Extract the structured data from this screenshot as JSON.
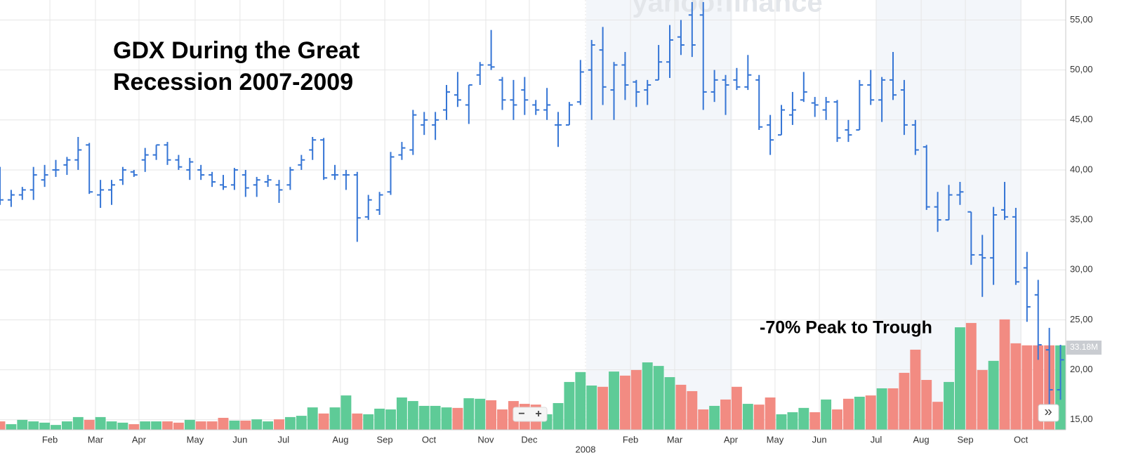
{
  "chart_data": {
    "type": "ohlc",
    "title": [
      "GDX During the Great",
      "Recession 2007-2009"
    ],
    "annotation": "-70% Peak to Trough",
    "watermark": "yahoo!finance",
    "volume_label": "33.18M",
    "zoom_out": "−",
    "zoom_in": "+",
    "scroll": "»",
    "color": "#3575d5",
    "up_color": "#5ecb97",
    "down_color": "#f28b82",
    "grid": true,
    "xlim": [
      0,
      95.47
    ],
    "xticks": [
      {
        "value": 4.47,
        "label": "Feb"
      },
      {
        "value": 8.55,
        "label": "Mar"
      },
      {
        "value": 12.45,
        "label": "Apr"
      },
      {
        "value": 17.48,
        "label": "May"
      },
      {
        "value": 21.5,
        "label": "Jun"
      },
      {
        "value": 25.4,
        "label": "Jul"
      },
      {
        "value": 30.5,
        "label": "Aug"
      },
      {
        "value": 34.47,
        "label": "Sep"
      },
      {
        "value": 38.43,
        "label": "Oct"
      },
      {
        "value": 43.52,
        "label": "Nov"
      },
      {
        "value": 47.42,
        "label": "Dec"
      },
      {
        "value": 52.45,
        "label": "2008"
      },
      {
        "value": 56.48,
        "label": "Feb"
      },
      {
        "value": 60.44,
        "label": "Mar"
      },
      {
        "value": 65.47,
        "label": "Apr"
      },
      {
        "value": 69.43,
        "label": "May"
      },
      {
        "value": 73.4,
        "label": "Jun"
      },
      {
        "value": 78.49,
        "label": "Jul"
      },
      {
        "value": 82.52,
        "label": "Aug"
      },
      {
        "value": 86.48,
        "label": "Sep"
      },
      {
        "value": 91.45,
        "label": "Oct"
      }
    ],
    "ylim": [
      14,
      57
    ],
    "yticks": [
      {
        "value": 15,
        "label": "15,00"
      },
      {
        "value": 20,
        "label": "20,00"
      },
      {
        "value": 25,
        "label": "25,00"
      },
      {
        "value": 30,
        "label": "30,00"
      },
      {
        "value": 35,
        "label": "35,00"
      },
      {
        "value": 40,
        "label": "40,00"
      },
      {
        "value": 45,
        "label": "45,00"
      },
      {
        "value": 50,
        "label": "50,00"
      },
      {
        "value": 55,
        "label": "55,00"
      }
    ],
    "y2lim": [
      0,
      169
    ],
    "open": [
      37.5,
      37,
      37.5,
      38,
      39,
      40,
      40.5,
      41,
      42.5,
      37.5,
      38,
      39,
      39.8,
      41,
      41.5,
      42.5,
      41,
      40,
      40,
      39.5,
      38.5,
      38.5,
      39.5,
      38.5,
      38.8,
      38.5,
      38.5,
      40.5,
      42,
      43,
      39.5,
      39.5,
      39.5,
      35.3,
      36,
      37.8,
      41.5,
      42,
      44.5,
      44.5,
      46,
      47.5,
      46.5,
      49.5,
      50.5,
      49,
      47,
      48,
      46.5,
      46,
      44.5,
      44.5,
      46.8,
      50,
      52,
      48,
      50.5,
      48.8,
      48,
      49,
      50.8,
      53.3,
      55.5,
      55.5,
      47.8,
      49,
      49,
      48.3,
      49,
      44.5,
      43.5,
      45.5,
      47,
      46.7,
      46,
      46.8,
      44,
      44,
      48.5,
      47,
      49,
      48,
      44.5,
      42.3,
      36.3,
      35,
      37.5,
      35.8,
      31.5,
      31.2,
      36,
      35.3,
      30.2,
      27.5,
      22,
      18
    ],
    "high": [
      40.3,
      38,
      38.3,
      40.3,
      40.5,
      41,
      41.3,
      43.3,
      42.7,
      39,
      39,
      40.3,
      40,
      42.2,
      42.5,
      42.8,
      41.5,
      41.2,
      40.5,
      39.8,
      39.5,
      40.2,
      40,
      39.3,
      39.5,
      39,
      40.3,
      41.5,
      43.3,
      43.2,
      40.5,
      40,
      39.8,
      37.5,
      37.8,
      41.8,
      42.8,
      46,
      45.8,
      45.8,
      48.5,
      49.8,
      48.5,
      50.8,
      54,
      49.3,
      49,
      49.3,
      47,
      48.2,
      45.8,
      46.8,
      51,
      53,
      54.3,
      50.8,
      51.8,
      49,
      49,
      52.5,
      54.5,
      55,
      56.8,
      56.8,
      50,
      49.5,
      50.2,
      51.5,
      49.5,
      45.5,
      46.5,
      47.8,
      49.8,
      47.3,
      47.3,
      47,
      45,
      49,
      50,
      49.3,
      51.8,
      49,
      45,
      42.5,
      37.8,
      38.5,
      38.8,
      35.8,
      33.5,
      36.3,
      38.8,
      36.2,
      31.8,
      29,
      24.2,
      22.5
    ],
    "low": [
      36.5,
      36.3,
      37,
      37,
      38.3,
      39.3,
      39.5,
      40,
      37.6,
      36.2,
      36.5,
      38.5,
      39.3,
      39.8,
      41,
      40.5,
      40,
      39,
      39,
      38.3,
      38,
      38,
      37.3,
      37.3,
      38.3,
      36.7,
      38,
      40,
      41,
      39,
      39,
      38,
      32.8,
      35,
      35.5,
      37.5,
      41,
      41.5,
      43.5,
      43,
      45,
      46.3,
      44.6,
      48.5,
      50,
      46,
      45,
      45.5,
      45.5,
      45,
      42.3,
      44.5,
      46.5,
      45,
      46.5,
      45,
      47,
      46.3,
      46.5,
      49,
      49.2,
      51.5,
      51.3,
      46,
      46.8,
      45.5,
      48,
      48,
      44,
      41.5,
      43.5,
      44.5,
      46.8,
      45.3,
      45,
      42.8,
      42.8,
      44,
      46.5,
      44.8,
      47,
      43.5,
      41.5,
      36,
      33.8,
      35,
      36.5,
      30.5,
      27.3,
      28.5,
      35,
      28.5,
      24.8,
      21,
      16.5,
      17
    ],
    "close": [
      37,
      37.5,
      38,
      39.5,
      39.5,
      40,
      41,
      42,
      37.8,
      38,
      38.5,
      40,
      39.5,
      41.5,
      42.5,
      41,
      40.3,
      40.8,
      39.5,
      38.8,
      38.3,
      40,
      38.2,
      39,
      39,
      38,
      40,
      41,
      43,
      39.2,
      39.5,
      39.5,
      35.2,
      37,
      37.5,
      41.3,
      42.2,
      45.5,
      45,
      45,
      47.8,
      47,
      48.5,
      50.5,
      50.3,
      47,
      46.5,
      47,
      46,
      46.5,
      44.5,
      46.5,
      49.8,
      52.5,
      48.3,
      50.5,
      48.5,
      47.8,
      48.5,
      50.8,
      53,
      52.5,
      52.5,
      47.8,
      49,
      48.5,
      48.3,
      49.5,
      44.3,
      43,
      46,
      46,
      47.8,
      46.5,
      46.8,
      43.2,
      43.5,
      48.5,
      47,
      49,
      47.5,
      44.5,
      42,
      36.3,
      35,
      37.5,
      37.8,
      31.5,
      31.2,
      35.5,
      35.3,
      28.8,
      26.3,
      22.5,
      18,
      21
    ],
    "volume": [
      3.3,
      2.2,
      3.9,
      3.3,
      2.8,
      1.9,
      3.3,
      5,
      3.9,
      5,
      3.3,
      2.8,
      2.2,
      3.3,
      3.3,
      3.3,
      2.8,
      3.9,
      3.3,
      3.3,
      4.7,
      3.6,
      3.6,
      4.1,
      3.3,
      4.1,
      5,
      5.5,
      8.8,
      6.4,
      8.8,
      13.5,
      6.4,
      6.1,
      8.3,
      8,
      12.7,
      11.3,
      9.4,
      9.4,
      8.8,
      8.6,
      12.4,
      12.2,
      11.6,
      8,
      11.3,
      10.2,
      9.9,
      6.1,
      10.5,
      18.8,
      22.7,
      17.4,
      16.9,
      22.9,
      21.3,
      23.5,
      26.5,
      25.1,
      20.7,
      17.7,
      15.2,
      8,
      9.4,
      11.9,
      16.9,
      10.2,
      9.9,
      12.7,
      6.1,
      6.9,
      8.6,
      6.9,
      11.9,
      8,
      12.2,
      13,
      13.5,
      16.3,
      16.3,
      22.4,
      31.5,
      19.6,
      11,
      18.8,
      40.3,
      42,
      23.5,
      27.1,
      43.4,
      34,
      33.2,
      33.2,
      33.2,
      33.18
    ]
  }
}
